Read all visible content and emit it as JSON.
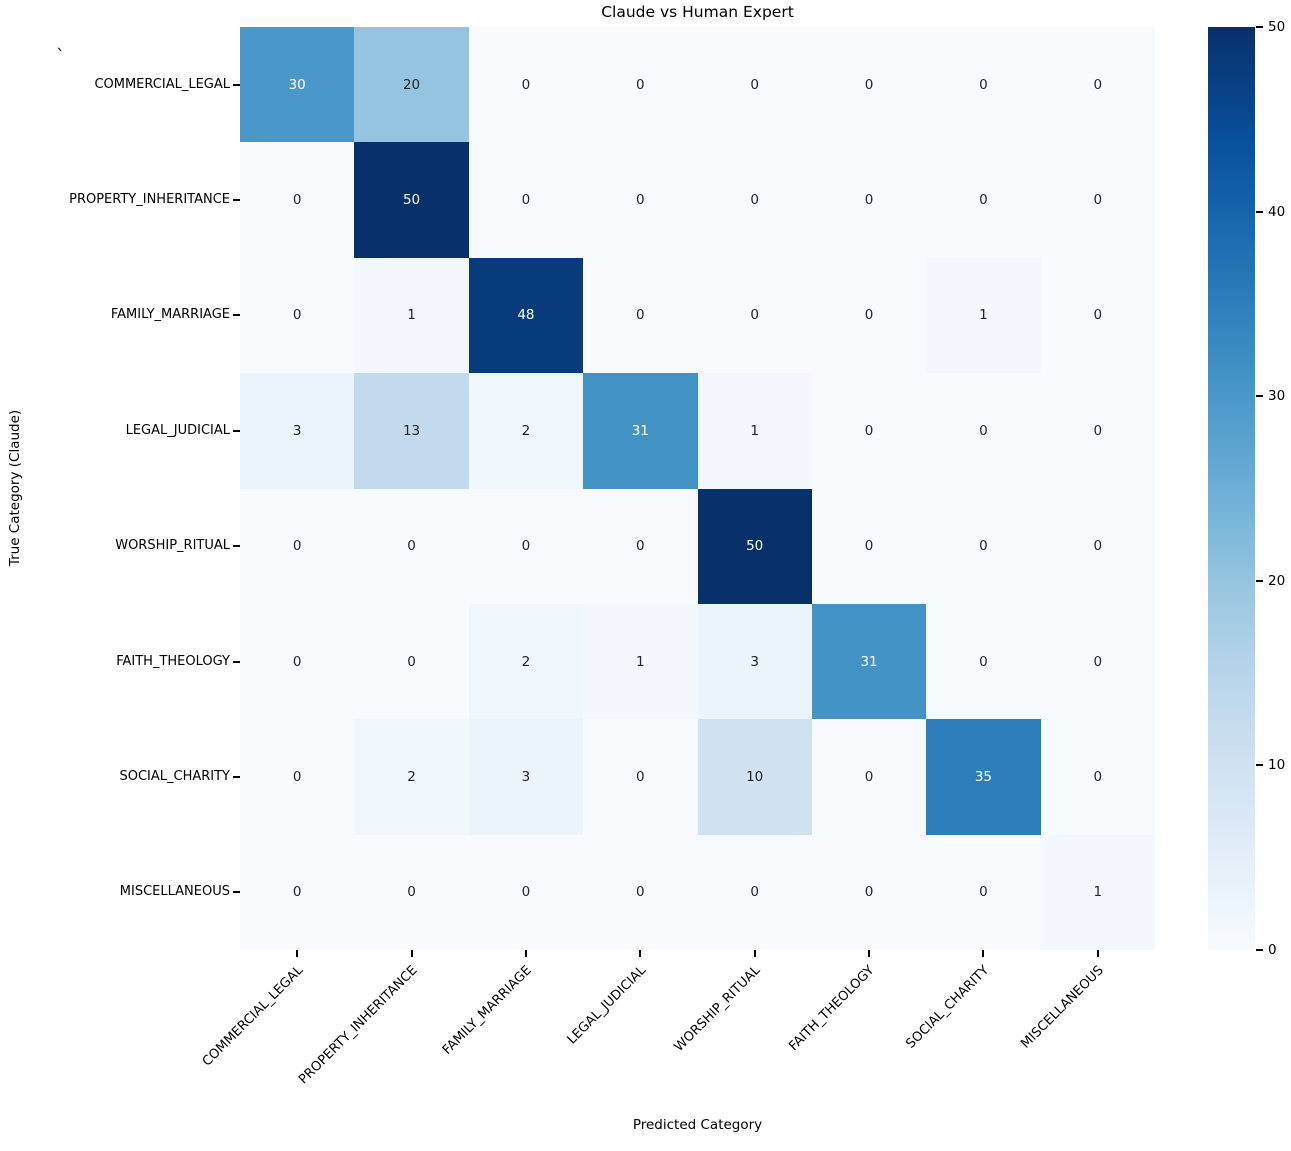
{
  "figure": {
    "corner_mark": "`"
  },
  "chart_data": {
    "type": "heatmap",
    "title": "Claude vs Human Expert",
    "xlabel": "Predicted Category",
    "ylabel": "True Category (Claude)",
    "x_categories": [
      "COMMERCIAL_LEGAL",
      "PROPERTY_INHERITANCE",
      "FAMILY_MARRIAGE",
      "LEGAL_JUDICIAL",
      "WORSHIP_RITUAL",
      "FAITH_THEOLOGY",
      "SOCIAL_CHARITY",
      "MISCELLANEOUS"
    ],
    "y_categories": [
      "COMMERCIAL_LEGAL",
      "PROPERTY_INHERITANCE",
      "FAMILY_MARRIAGE",
      "LEGAL_JUDICIAL",
      "WORSHIP_RITUAL",
      "FAITH_THEOLOGY",
      "SOCIAL_CHARITY",
      "MISCELLANEOUS"
    ],
    "matrix": [
      [
        30,
        20,
        0,
        0,
        0,
        0,
        0,
        0
      ],
      [
        0,
        50,
        0,
        0,
        0,
        0,
        0,
        0
      ],
      [
        0,
        1,
        48,
        0,
        0,
        0,
        1,
        0
      ],
      [
        3,
        13,
        2,
        31,
        1,
        0,
        0,
        0
      ],
      [
        0,
        0,
        0,
        0,
        50,
        0,
        0,
        0
      ],
      [
        0,
        0,
        2,
        1,
        3,
        31,
        0,
        0
      ],
      [
        0,
        2,
        3,
        0,
        10,
        0,
        35,
        0
      ],
      [
        0,
        0,
        0,
        0,
        0,
        0,
        0,
        1
      ]
    ],
    "vmin": 0,
    "vmax": 50,
    "colorbar_ticks": [
      0,
      10,
      20,
      30,
      40,
      50
    ],
    "colormap": "Blues",
    "colormap_stops": [
      {
        "t": 0.0,
        "color": "#f7fbff"
      },
      {
        "t": 0.125,
        "color": "#deebf7"
      },
      {
        "t": 0.25,
        "color": "#c6dbef"
      },
      {
        "t": 0.375,
        "color": "#9ecae1"
      },
      {
        "t": 0.5,
        "color": "#6baed6"
      },
      {
        "t": 0.625,
        "color": "#4292c6"
      },
      {
        "t": 0.75,
        "color": "#2171b5"
      },
      {
        "t": 0.875,
        "color": "#08519c"
      },
      {
        "t": 1.0,
        "color": "#08306b"
      }
    ],
    "annotation_colors": {
      "light": "#ffffff",
      "dark": "#262626"
    },
    "annotation_threshold": 0.5,
    "grid": false,
    "legend_position": "right-colorbar"
  }
}
